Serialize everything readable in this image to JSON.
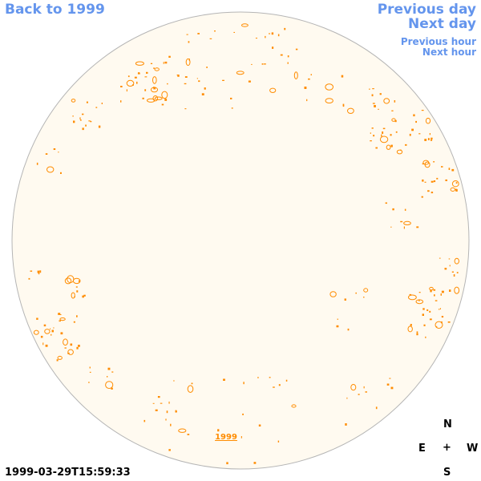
{
  "nav": {
    "back_label": "Back to 1999",
    "previous_day_label": "Previous day",
    "next_day_label": "Next day",
    "previous_hour_label": "Previous hour",
    "next_hour_label": "Next hour"
  },
  "disk": {
    "year_label": "1999",
    "fill_color": "#fffaf0",
    "border_color": "#b5b5b5",
    "feature_color": "#ff8c00"
  },
  "timestamp": "1999-03-29T15:59:33",
  "compass": {
    "north": "N",
    "south": "S",
    "east": "E",
    "west": "W",
    "center": "+"
  }
}
